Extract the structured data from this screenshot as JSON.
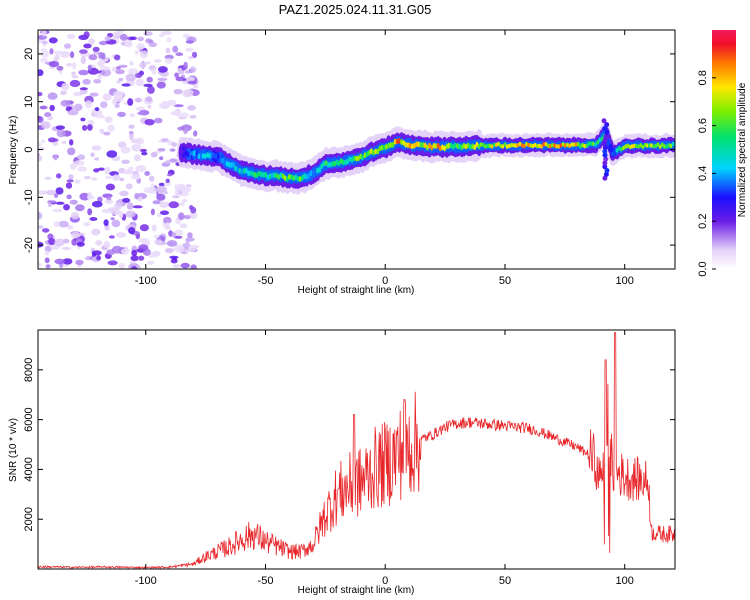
{
  "title": "PAZ1.2025.024.11.31.G05",
  "chart_data": [
    {
      "type": "heatmap",
      "xlabel": "Height of straight line (km)",
      "ylabel": "Frequency (Hz)",
      "xlim": [
        -145,
        121
      ],
      "ylim": [
        -25,
        25
      ],
      "xticks": [
        -100,
        -50,
        0,
        50,
        100
      ],
      "yticks": [
        -20,
        -10,
        0,
        10,
        20
      ],
      "colorbar": {
        "label": "Normalized spectral amplitude",
        "range": [
          0,
          1
        ],
        "ticks": [
          0.0,
          0.2,
          0.4,
          0.6,
          0.8
        ],
        "tick_labels": [
          "0.0",
          "0.2",
          "0.4",
          "0.6",
          "0.8"
        ]
      },
      "ridge": {
        "x": [
          -85,
          -80,
          -75,
          -70,
          -65,
          -60,
          -55,
          -50,
          -45,
          -40,
          -35,
          -30,
          -25,
          -20,
          -15,
          -10,
          -5,
          0,
          5,
          10,
          15,
          20,
          30,
          40,
          50,
          60,
          70,
          80,
          88,
          90,
          92,
          95,
          100,
          110,
          121
        ],
        "freq": [
          -0.5,
          -1.0,
          -1.3,
          -1.5,
          -3.0,
          -4.5,
          -5.0,
          -5.5,
          -5.5,
          -6.0,
          -6.0,
          -5.0,
          -3.0,
          -2.8,
          -2.3,
          -1.6,
          -0.4,
          0.3,
          1.6,
          1.0,
          0.8,
          0.5,
          0.6,
          0.8,
          0.9,
          0.9,
          0.9,
          0.9,
          1.0,
          2.0,
          3.5,
          -1.0,
          0.8,
          0.8,
          0.9
        ],
        "amplitude": [
          0.25,
          0.4,
          0.45,
          0.35,
          0.45,
          0.5,
          0.55,
          0.5,
          0.55,
          0.7,
          0.6,
          0.45,
          0.55,
          0.6,
          0.6,
          0.65,
          0.75,
          0.7,
          0.85,
          0.8,
          0.75,
          0.95,
          0.65,
          0.7,
          0.8,
          0.9,
          0.85,
          0.8,
          0.6,
          0.55,
          0.5,
          0.35,
          0.75,
          0.7,
          0.6
        ]
      },
      "noise_region_x": [
        -145,
        -85
      ]
    },
    {
      "type": "line",
      "xlabel": "Height of straight line (km)",
      "ylabel": "SNR (10 * v/v)",
      "xlim": [
        -145,
        121
      ],
      "ylim": [
        0,
        9600
      ],
      "xticks": [
        -100,
        -50,
        0,
        50,
        100
      ],
      "yticks": [
        2000,
        4000,
        6000,
        8000
      ],
      "color": "#e8262a",
      "series": [
        {
          "x": [
            -145,
            -130,
            -115,
            -100,
            -90,
            -80,
            -75,
            -70,
            -65,
            -60,
            -55,
            -50,
            -45,
            -40,
            -35,
            -30,
            -25,
            -20,
            -15,
            -10,
            -5,
            0,
            5,
            10,
            15,
            20,
            25,
            30,
            35,
            40,
            45,
            50,
            55,
            60,
            65,
            70,
            75,
            80,
            85,
            88,
            90,
            92,
            93,
            95,
            97,
            100,
            105,
            110,
            111,
            115,
            121
          ],
          "y": [
            90,
            70,
            80,
            60,
            80,
            200,
            500,
            700,
            900,
            1200,
            1400,
            1100,
            900,
            700,
            700,
            1000,
            2200,
            3000,
            3300,
            3500,
            4000,
            4200,
            4600,
            4900,
            5200,
            5400,
            5700,
            5850,
            5900,
            5850,
            5800,
            5750,
            5700,
            5650,
            5500,
            5300,
            5100,
            4900,
            4600,
            4300,
            3800,
            4000,
            6000,
            3900,
            3900,
            3700,
            3600,
            3500,
            1500,
            1400,
            1400
          ],
          "spikes": [
            {
              "x": -13,
              "y": 6200
            },
            {
              "x": 8,
              "y": 6800
            },
            {
              "x": 92,
              "y": 8400
            },
            {
              "x": 96,
              "y": 9500
            }
          ]
        }
      ]
    }
  ]
}
